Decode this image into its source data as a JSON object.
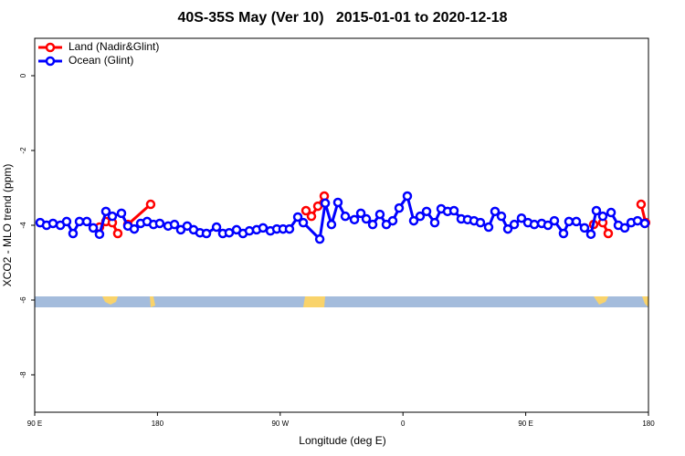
{
  "chart_data": {
    "type": "line",
    "title": "40S-35S May (Ver 10)   2015-01-01 to 2020-12-18",
    "x_label": "Longitude (deg E)",
    "y_label": "XCO2 - MLO trend (ppm)",
    "xlim": [
      90,
      540
    ],
    "ylim": [
      -9,
      1
    ],
    "xticks": [
      {
        "value": 90,
        "label": "90 E"
      },
      180,
      {
        "value": 270,
        "label": "90 W"
      },
      {
        "value": 360,
        "label": "0"
      },
      {
        "value": 450,
        "label": "90 E"
      },
      {
        "value": 540,
        "label": "180"
      }
    ],
    "yticks": [
      -8,
      -6,
      -4,
      -2,
      0
    ],
    "legend": "upper left",
    "series": [
      {
        "name": "Land (Nadir&Glint)",
        "color": "#ff0000",
        "x": [
          137.5,
          142.2,
          146.9,
          150.9,
          null,
          158.3,
          175.0,
          null,
          288.9,
          292.9,
          297.6,
          302.3,
          null,
          499.8,
          506.5,
          510.5,
          null,
          534.6,
          537.9
        ],
        "values": [
          -4.05,
          -3.9,
          -3.93,
          -4.22,
          null,
          -3.98,
          -3.44,
          null,
          -3.61,
          -3.76,
          -3.49,
          -3.22,
          null,
          -3.98,
          -3.93,
          -4.22,
          null,
          -3.44,
          -3.93
        ]
      },
      {
        "name": "Ocean (Glint)",
        "color": "#0000ff",
        "x": [
          94.0,
          98.7,
          103.4,
          108.8,
          113.4,
          118.1,
          122.8,
          128.2,
          132.9,
          137.5,
          142.2,
          146.9,
          153.6,
          158.3,
          163.0,
          167.7,
          172.4,
          177.1,
          181.7,
          187.8,
          192.5,
          197.1,
          201.8,
          206.5,
          211.2,
          215.9,
          223.3,
          227.9,
          232.6,
          238.0,
          242.7,
          247.4,
          252.7,
          257.4,
          262.8,
          267.5,
          272.1,
          276.8,
          282.9,
          286.9,
          299.0,
          303.0,
          307.6,
          312.3,
          317.7,
          324.4,
          329.1,
          333.1,
          337.8,
          343.1,
          347.8,
          352.5,
          357.2,
          363.2,
          367.9,
          372.6,
          377.3,
          383.3,
          388.0,
          392.7,
          397.4,
          402.7,
          407.4,
          412.1,
          416.8,
          422.8,
          427.5,
          432.2,
          436.9,
          441.6,
          446.9,
          451.6,
          456.3,
          461.7,
          466.3,
          471.0,
          477.7,
          481.7,
          487.1,
          493.1,
          497.8,
          501.8,
          506.5,
          512.6,
          517.9,
          522.6,
          527.3,
          532.0,
          537.3
        ],
        "values": [
          -3.93,
          -4.0,
          -3.95,
          -4.0,
          -3.9,
          -4.22,
          -3.9,
          -3.9,
          -4.07,
          -4.24,
          -3.63,
          -3.76,
          -3.68,
          -4.02,
          -4.1,
          -3.95,
          -3.9,
          -3.98,
          -3.95,
          -4.02,
          -3.98,
          -4.12,
          -4.02,
          -4.12,
          -4.2,
          -4.22,
          -4.05,
          -4.22,
          -4.2,
          -4.12,
          -4.22,
          -4.15,
          -4.12,
          -4.07,
          -4.15,
          -4.1,
          -4.1,
          -4.1,
          -3.78,
          -3.93,
          -4.37,
          -3.41,
          -3.98,
          -3.39,
          -3.76,
          -3.85,
          -3.68,
          -3.83,
          -3.98,
          -3.71,
          -3.98,
          -3.88,
          -3.54,
          -3.22,
          -3.88,
          -3.76,
          -3.63,
          -3.93,
          -3.56,
          -3.63,
          -3.61,
          -3.83,
          -3.85,
          -3.88,
          -3.93,
          -4.05,
          -3.63,
          -3.76,
          -4.1,
          -3.98,
          -3.81,
          -3.93,
          -3.98,
          -3.95,
          -4.0,
          -3.88,
          -4.22,
          -3.9,
          -3.9,
          -4.07,
          -4.24,
          -3.61,
          -3.76,
          -3.66,
          -4.0,
          -4.07,
          -3.93,
          -3.88,
          -3.95
        ]
      }
    ]
  }
}
